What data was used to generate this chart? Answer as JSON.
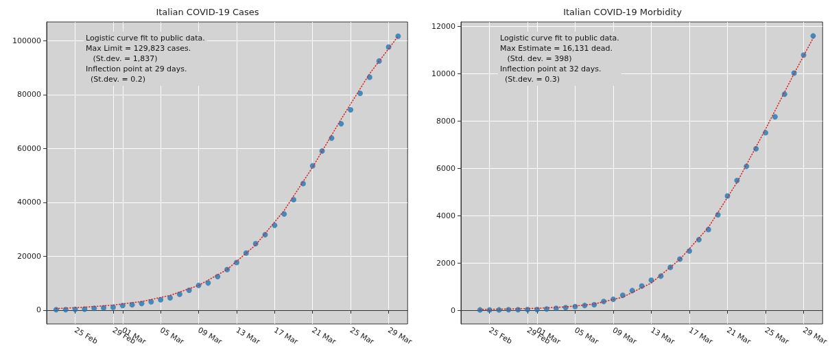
{
  "chart_data": [
    {
      "type": "scatter",
      "title": "Italian COVID-19 Cases",
      "grid": true,
      "marker": "circle",
      "annotations": [
        "Logistic curve fit to public data.",
        "Max Limit = 129,823 cases.",
        "   (St.dev. = 1,837)",
        "Inflection point at 29 days.",
        "  (St.dev. = 0.2)"
      ],
      "xlim": [
        "--02-22",
        "--03-31"
      ],
      "xticks": [
        {
          "value": "--02-25",
          "label": "25 Feb"
        },
        {
          "value": "--02-29",
          "label": "29 Feb"
        },
        {
          "value": "--03-01",
          "label": "01 Mar"
        },
        {
          "value": "--03-05",
          "label": "05 Mar"
        },
        {
          "value": "--03-09",
          "label": "09 Mar"
        },
        {
          "value": "--03-13",
          "label": "13 Mar"
        },
        {
          "value": "--03-17",
          "label": "17 Mar"
        },
        {
          "value": "--03-21",
          "label": "21 Mar"
        },
        {
          "value": "--03-25",
          "label": "25 Mar"
        },
        {
          "value": "--03-29",
          "label": "29 Mar"
        }
      ],
      "ylim": [
        -5100,
        107000
      ],
      "yticks": [
        0,
        20000,
        40000,
        60000,
        80000,
        100000
      ],
      "x": [
        "--02-23",
        "--02-24",
        "--02-25",
        "--02-26",
        "--02-27",
        "--02-28",
        "--02-29",
        "--03-01",
        "--03-02",
        "--03-03",
        "--03-04",
        "--03-05",
        "--03-06",
        "--03-07",
        "--03-08",
        "--03-09",
        "--03-10",
        "--03-11",
        "--03-12",
        "--03-13",
        "--03-14",
        "--03-15",
        "--03-16",
        "--03-17",
        "--03-18",
        "--03-19",
        "--03-20",
        "--03-21",
        "--03-22",
        "--03-23",
        "--03-24",
        "--03-25",
        "--03-26",
        "--03-27",
        "--03-28",
        "--03-29",
        "--03-30"
      ],
      "series": [
        {
          "type": "scatter",
          "color": "#1f77b4",
          "values": [
            200,
            200,
            300,
            400,
            700,
            900,
            1100,
            1700,
            2000,
            2500,
            3100,
            3900,
            4600,
            5900,
            7400,
            9200,
            10100,
            12500,
            15100,
            17700,
            21200,
            24700,
            28000,
            31500,
            35700,
            41000,
            47000,
            53600,
            59100,
            63900,
            69200,
            74400,
            80500,
            86500,
            92500,
            97700,
            101700
          ]
        },
        {
          "type": "line",
          "color": "#d62728",
          "line_style": "dotted",
          "marker": "none",
          "x": [
            "--02-23",
            "--02-26",
            "--02-29",
            "--03-03",
            "--03-06",
            "--03-09",
            "--03-12",
            "--03-15",
            "--03-18",
            "--03-21",
            "--03-24",
            "--03-27",
            "--03-30"
          ],
          "values": [
            600,
            1100,
            1900,
            3200,
            5500,
            9200,
            15100,
            24200,
            37000,
            53100,
            70900,
            87800,
            101700
          ]
        }
      ]
    },
    {
      "type": "scatter",
      "title": "Italian COVID-19 Morbidity",
      "grid": true,
      "marker": "circle",
      "annotations": [
        "Logistic curve fit to public data.",
        "Max Estimate = 16,131 dead.",
        "   (Std. dev. = 398)",
        "Inflection point at 32 days.",
        "  (St.dev. = 0.3)"
      ],
      "xlim": [
        "--02-22",
        "--03-31"
      ],
      "xticks": [
        {
          "value": "--02-25",
          "label": "25 Feb"
        },
        {
          "value": "--02-29",
          "label": "29 Feb"
        },
        {
          "value": "--03-01",
          "label": "01 Mar"
        },
        {
          "value": "--03-05",
          "label": "05 Mar"
        },
        {
          "value": "--03-09",
          "label": "09 Mar"
        },
        {
          "value": "--03-13",
          "label": "13 Mar"
        },
        {
          "value": "--03-17",
          "label": "17 Mar"
        },
        {
          "value": "--03-21",
          "label": "21 Mar"
        },
        {
          "value": "--03-25",
          "label": "25 Mar"
        },
        {
          "value": "--03-29",
          "label": "29 Mar"
        }
      ],
      "ylim": [
        -580,
        12180
      ],
      "yticks": [
        0,
        2000,
        4000,
        6000,
        8000,
        10000,
        12000
      ],
      "x": [
        "--02-24",
        "--02-25",
        "--02-26",
        "--02-27",
        "--02-28",
        "--02-29",
        "--03-01",
        "--03-02",
        "--03-03",
        "--03-04",
        "--03-05",
        "--03-06",
        "--03-07",
        "--03-08",
        "--03-09",
        "--03-10",
        "--03-11",
        "--03-12",
        "--03-13",
        "--03-14",
        "--03-15",
        "--03-16",
        "--03-17",
        "--03-18",
        "--03-19",
        "--03-20",
        "--03-21",
        "--03-22",
        "--03-23",
        "--03-24",
        "--03-25",
        "--03-26",
        "--03-27",
        "--03-28",
        "--03-29",
        "--03-30"
      ],
      "series": [
        {
          "type": "scatter",
          "color": "#1f77b4",
          "values": [
            10,
            10,
            10,
            20,
            20,
            30,
            30,
            50,
            80,
            110,
            150,
            200,
            230,
            370,
            460,
            630,
            830,
            1020,
            1270,
            1440,
            1810,
            2160,
            2500,
            2980,
            3410,
            4030,
            4830,
            5480,
            6080,
            6820,
            7500,
            8170,
            9130,
            10020,
            10780,
            11590
          ]
        },
        {
          "type": "line",
          "color": "#d62728",
          "line_style": "dotted",
          "marker": "none",
          "x": [
            "--02-24",
            "--02-27",
            "--03-01",
            "--03-04",
            "--03-07",
            "--03-10",
            "--03-13",
            "--03-16",
            "--03-19",
            "--03-22",
            "--03-25",
            "--03-28",
            "--03-30"
          ],
          "values": [
            30,
            50,
            80,
            140,
            260,
            550,
            1150,
            2150,
            3500,
            5400,
            7650,
            10000,
            11500
          ]
        }
      ]
    }
  ]
}
